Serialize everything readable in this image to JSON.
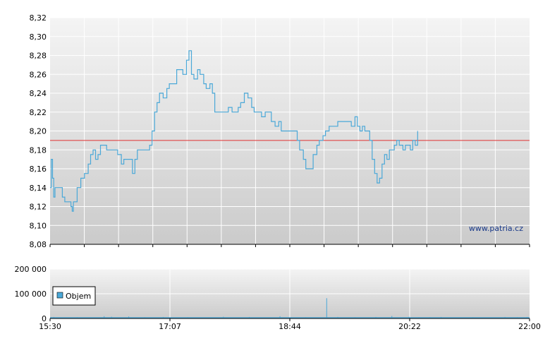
{
  "watermark": "www.patria.cz",
  "chart_data": [
    {
      "type": "line",
      "name": "price",
      "y_ticks": [
        "8,08",
        "8,10",
        "8,12",
        "8,14",
        "8,16",
        "8,18",
        "8,20",
        "8,22",
        "8,24",
        "8,26",
        "8,28",
        "8,30",
        "8,32"
      ],
      "ylim": [
        8.08,
        8.32
      ],
      "xlim": [
        "15:30",
        "22:00"
      ],
      "reference_line": 8.19,
      "reference_color": "#e03030",
      "line_color": "#4aa8d8",
      "grid": true,
      "points": [
        [
          "15:30",
          8.14
        ],
        [
          "15:31",
          8.17
        ],
        [
          "15:32",
          8.15
        ],
        [
          "15:33",
          8.13
        ],
        [
          "15:34",
          8.14
        ],
        [
          "15:37",
          8.14
        ],
        [
          "15:40",
          8.13
        ],
        [
          "15:42",
          8.125
        ],
        [
          "15:47",
          8.12
        ],
        [
          "15:48",
          8.115
        ],
        [
          "15:49",
          8.125
        ],
        [
          "15:52",
          8.14
        ],
        [
          "15:55",
          8.15
        ],
        [
          "15:58",
          8.155
        ],
        [
          "16:01",
          8.165
        ],
        [
          "16:03",
          8.175
        ],
        [
          "16:05",
          8.18
        ],
        [
          "16:07",
          8.17
        ],
        [
          "16:09",
          8.175
        ],
        [
          "16:11",
          8.185
        ],
        [
          "16:16",
          8.18
        ],
        [
          "16:25",
          8.175
        ],
        [
          "16:28",
          8.165
        ],
        [
          "16:30",
          8.17
        ],
        [
          "16:35",
          8.17
        ],
        [
          "16:37",
          8.155
        ],
        [
          "16:39",
          8.17
        ],
        [
          "16:41",
          8.18
        ],
        [
          "16:47",
          8.18
        ],
        [
          "16:51",
          8.185
        ],
        [
          "16:53",
          8.2
        ],
        [
          "16:55",
          8.22
        ],
        [
          "16:57",
          8.23
        ],
        [
          "16:59",
          8.24
        ],
        [
          "17:02",
          8.235
        ],
        [
          "17:05",
          8.245
        ],
        [
          "17:07",
          8.25
        ],
        [
          "17:12",
          8.25
        ],
        [
          "17:13",
          8.265
        ],
        [
          "17:15",
          8.265
        ],
        [
          "17:18",
          8.26
        ],
        [
          "17:21",
          8.275
        ],
        [
          "17:23",
          8.285
        ],
        [
          "17:25",
          8.26
        ],
        [
          "17:27",
          8.255
        ],
        [
          "17:30",
          8.265
        ],
        [
          "17:32",
          8.26
        ],
        [
          "17:35",
          8.25
        ],
        [
          "17:37",
          8.245
        ],
        [
          "17:40",
          8.25
        ],
        [
          "17:42",
          8.24
        ],
        [
          "17:44",
          8.22
        ],
        [
          "17:52",
          8.22
        ],
        [
          "17:55",
          8.225
        ],
        [
          "17:58",
          8.22
        ],
        [
          "18:03",
          8.225
        ],
        [
          "18:05",
          8.23
        ],
        [
          "18:08",
          8.24
        ],
        [
          "18:11",
          8.235
        ],
        [
          "18:14",
          8.225
        ],
        [
          "18:16",
          8.22
        ],
        [
          "18:19",
          8.22
        ],
        [
          "18:22",
          8.215
        ],
        [
          "18:25",
          8.22
        ],
        [
          "18:28",
          8.22
        ],
        [
          "18:30",
          8.21
        ],
        [
          "18:33",
          8.205
        ],
        [
          "18:36",
          8.21
        ],
        [
          "18:38",
          8.2
        ],
        [
          "18:48",
          8.2
        ],
        [
          "18:51",
          8.19
        ],
        [
          "18:53",
          8.18
        ],
        [
          "18:56",
          8.17
        ],
        [
          "18:58",
          8.16
        ],
        [
          "19:02",
          8.16
        ],
        [
          "19:04",
          8.175
        ],
        [
          "19:07",
          8.185
        ],
        [
          "19:09",
          8.19
        ],
        [
          "19:12",
          8.195
        ],
        [
          "19:14",
          8.2
        ],
        [
          "19:17",
          8.205
        ],
        [
          "19:21",
          8.205
        ],
        [
          "19:24",
          8.21
        ],
        [
          "19:32",
          8.21
        ],
        [
          "19:35",
          8.205
        ],
        [
          "19:38",
          8.215
        ],
        [
          "19:40",
          8.205
        ],
        [
          "19:42",
          8.2
        ],
        [
          "19:44",
          8.205
        ],
        [
          "19:46",
          8.2
        ],
        [
          "19:48",
          8.2
        ],
        [
          "19:50",
          8.19
        ],
        [
          "19:52",
          8.17
        ],
        [
          "19:54",
          8.155
        ],
        [
          "19:56",
          8.145
        ],
        [
          "19:58",
          8.15
        ],
        [
          "20:00",
          8.165
        ],
        [
          "20:02",
          8.175
        ],
        [
          "20:04",
          8.17
        ],
        [
          "20:06",
          8.18
        ],
        [
          "20:08",
          8.18
        ],
        [
          "20:10",
          8.185
        ],
        [
          "20:12",
          8.19
        ],
        [
          "20:14",
          8.185
        ],
        [
          "20:17",
          8.18
        ],
        [
          "20:19",
          8.185
        ],
        [
          "20:21",
          8.185
        ],
        [
          "20:23",
          8.18
        ],
        [
          "20:25",
          8.19
        ],
        [
          "20:27",
          8.185
        ],
        [
          "20:29",
          8.2
        ]
      ]
    },
    {
      "type": "bar",
      "name": "volume",
      "legend_label": "Objem",
      "legend_color": "#4aa8d8",
      "y_ticks": [
        "0",
        "100 000",
        "200 000"
      ],
      "ylim": [
        0,
        200000
      ],
      "x_ticks": [
        "15:30",
        "17:07",
        "18:44",
        "20:22",
        "22:00"
      ],
      "grid": true,
      "spikes": [
        [
          "15:33",
          6000
        ],
        [
          "15:52",
          5000
        ],
        [
          "16:14",
          9000
        ],
        [
          "16:20",
          7000
        ],
        [
          "16:34",
          8000
        ],
        [
          "16:47",
          5000
        ],
        [
          "17:02",
          6000
        ],
        [
          "17:22",
          5000
        ],
        [
          "17:51",
          7000
        ],
        [
          "18:12",
          6000
        ],
        [
          "18:26",
          4000
        ],
        [
          "18:37",
          9000
        ],
        [
          "18:58",
          5000
        ],
        [
          "19:15",
          82000
        ],
        [
          "19:24",
          6000
        ],
        [
          "19:38",
          5000
        ],
        [
          "19:55",
          6000
        ],
        [
          "20:08",
          10000
        ],
        [
          "20:22",
          7000
        ],
        [
          "20:30",
          5000
        ],
        [
          "20:39",
          5000
        ],
        [
          "20:48",
          6000
        ],
        [
          "21:02",
          4000
        ],
        [
          "21:14",
          5000
        ],
        [
          "21:28",
          4000
        ],
        [
          "21:40",
          6000
        ],
        [
          "21:50",
          5000
        ],
        [
          "21:58",
          6000
        ]
      ]
    }
  ]
}
